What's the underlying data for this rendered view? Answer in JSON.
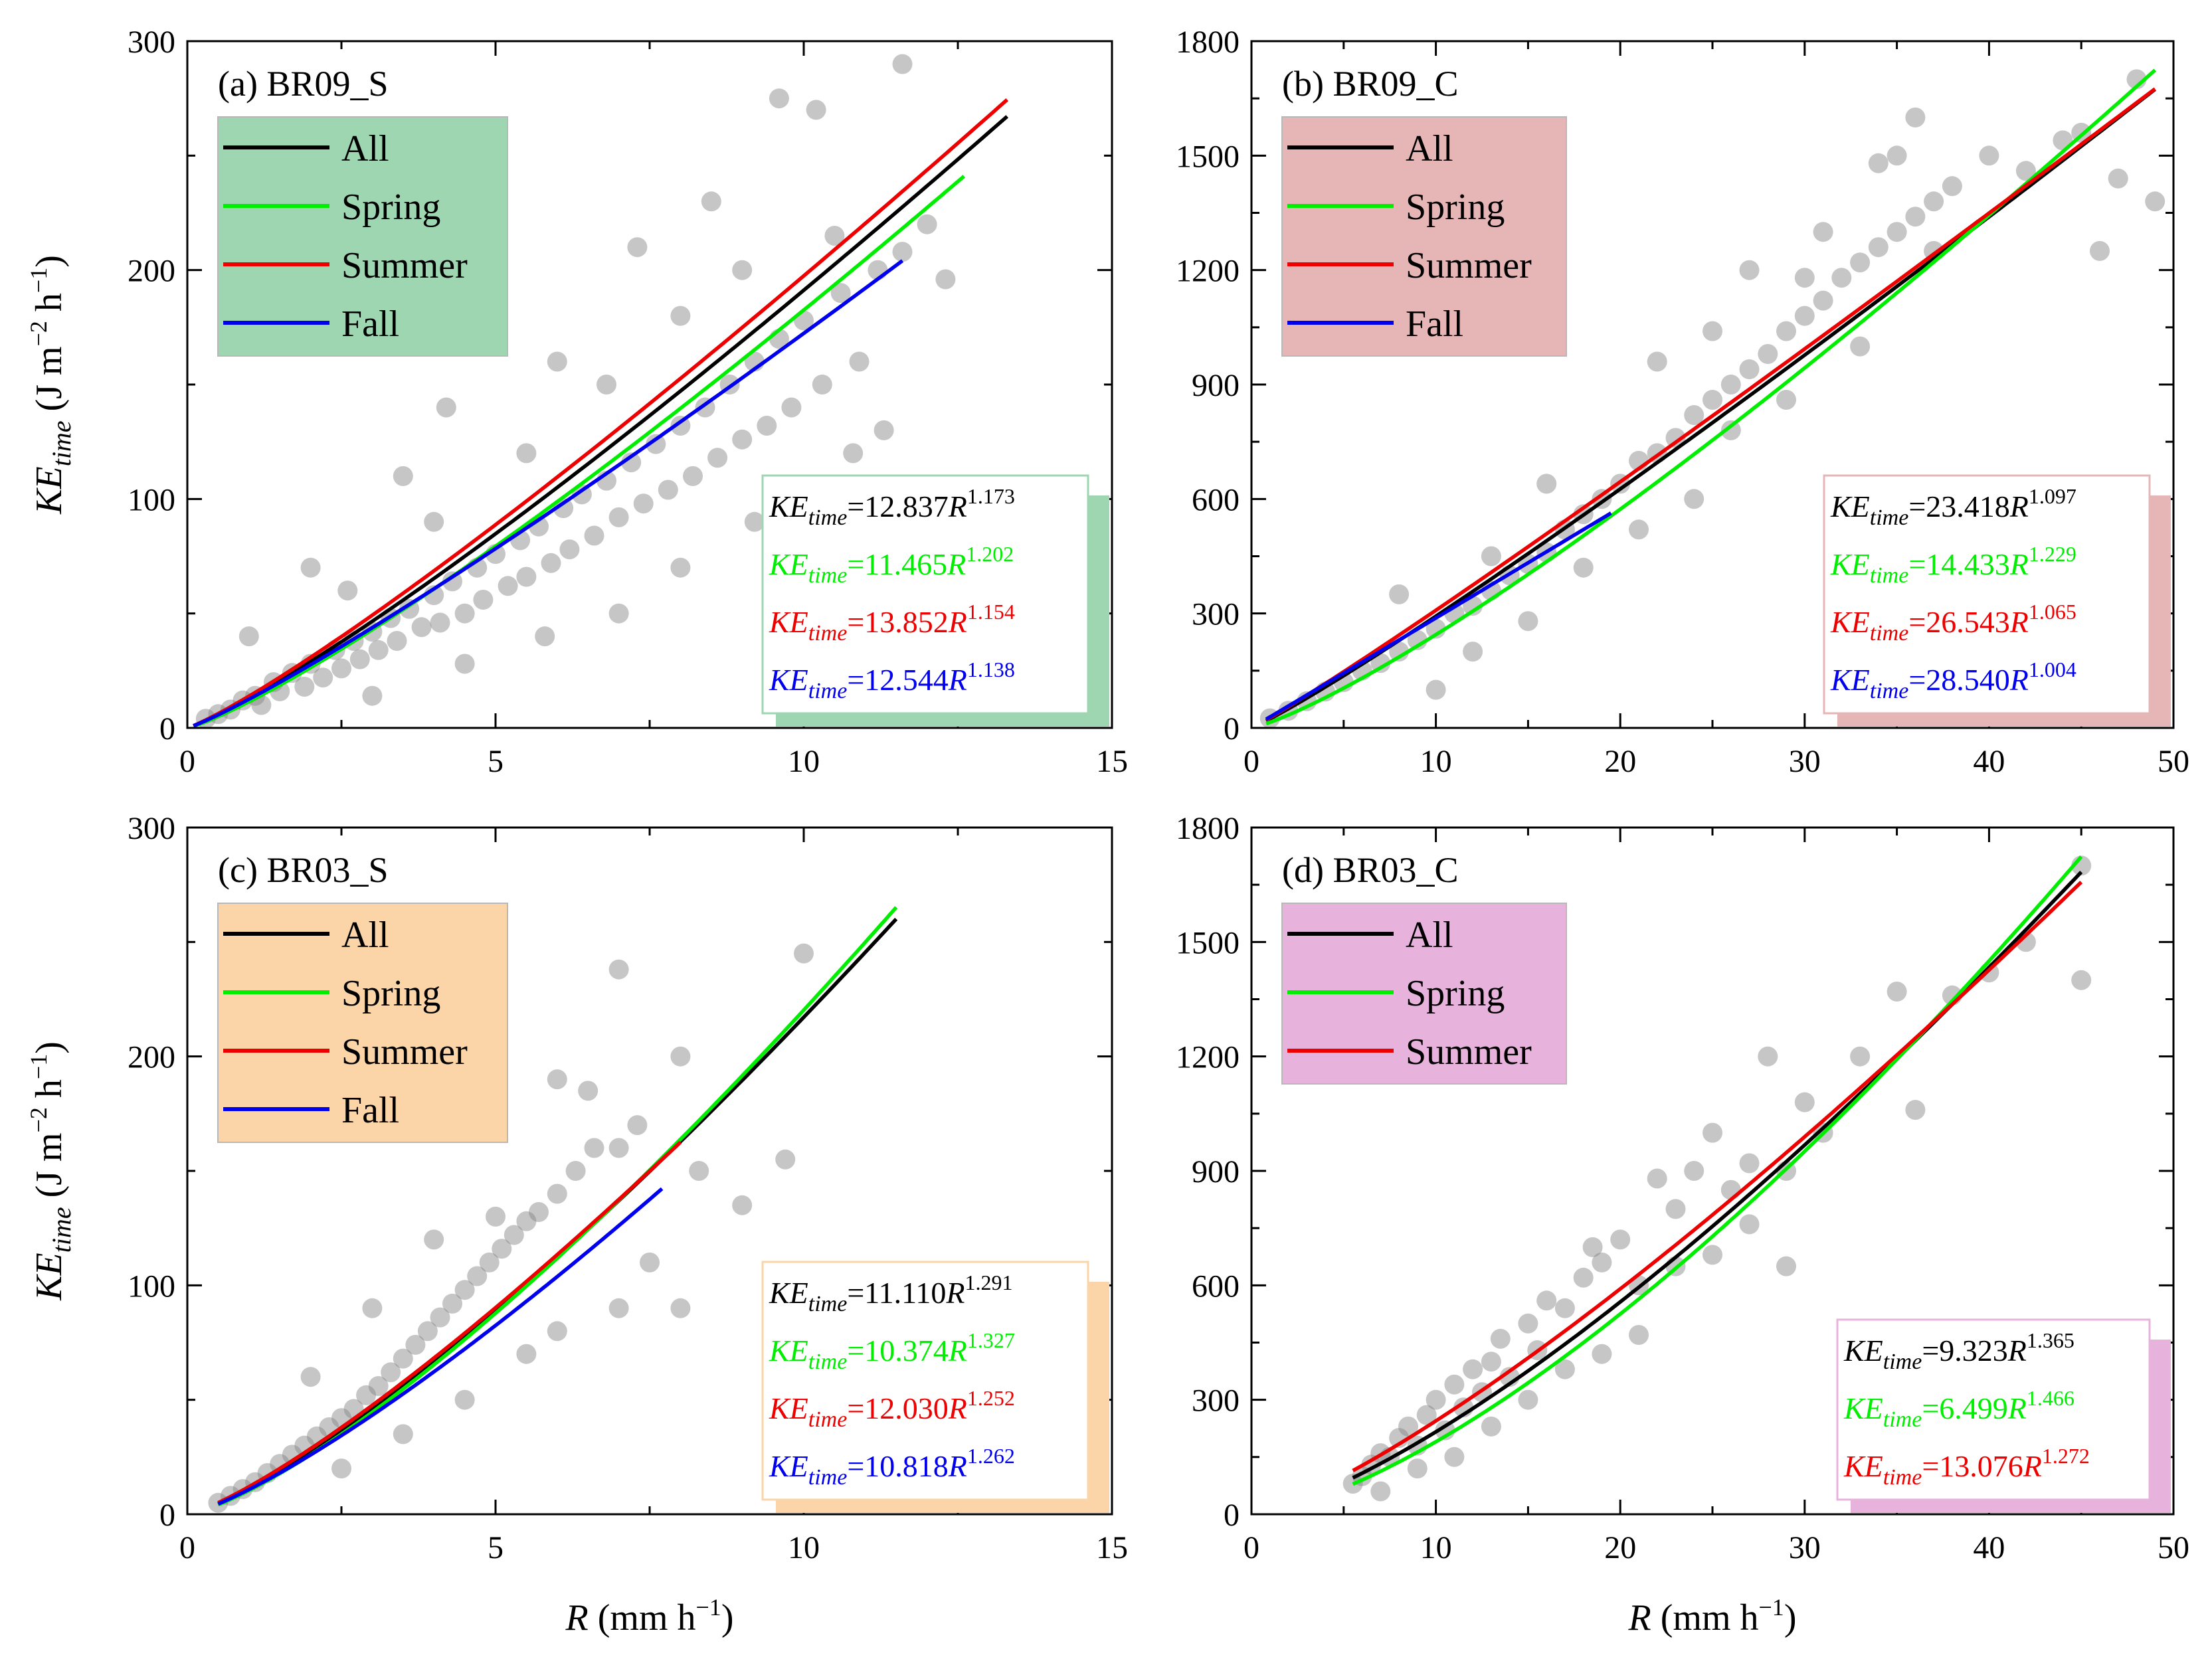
{
  "chart_data": [
    {
      "type": "scatter",
      "title": "(a) BR09_S",
      "xlabel": "R (mm h⁻¹)",
      "ylabel": "KE_time (J m⁻² h⁻¹)",
      "xlim": [
        0,
        15
      ],
      "ylim": [
        0,
        300
      ],
      "xticks": [
        0,
        5,
        10,
        15
      ],
      "yticks": [
        0,
        100,
        200,
        300
      ],
      "legend_color": "#9ed6b2",
      "equation_box_color": "#9ed6b2",
      "scatter_color": "#808080",
      "scatter_points": [
        [
          0.3,
          4
        ],
        [
          0.5,
          6
        ],
        [
          0.7,
          8
        ],
        [
          0.9,
          12
        ],
        [
          1.1,
          14
        ],
        [
          1.2,
          10
        ],
        [
          1.4,
          20
        ],
        [
          1.5,
          16
        ],
        [
          1.7,
          24
        ],
        [
          1.9,
          18
        ],
        [
          2.0,
          28
        ],
        [
          2.2,
          22
        ],
        [
          2.4,
          34
        ],
        [
          2.5,
          26
        ],
        [
          2.7,
          38
        ],
        [
          2.8,
          30
        ],
        [
          3.0,
          42
        ],
        [
          3.1,
          34
        ],
        [
          3.3,
          48
        ],
        [
          3.4,
          38
        ],
        [
          3.6,
          52
        ],
        [
          3.8,
          44
        ],
        [
          4.0,
          58
        ],
        [
          4.1,
          46
        ],
        [
          4.3,
          64
        ],
        [
          4.5,
          50
        ],
        [
          4.7,
          70
        ],
        [
          4.8,
          56
        ],
        [
          5.0,
          76
        ],
        [
          5.2,
          62
        ],
        [
          5.4,
          82
        ],
        [
          5.5,
          66
        ],
        [
          5.7,
          88
        ],
        [
          5.9,
          72
        ],
        [
          6.1,
          96
        ],
        [
          6.2,
          78
        ],
        [
          6.4,
          102
        ],
        [
          6.6,
          84
        ],
        [
          6.8,
          108
        ],
        [
          7.0,
          92
        ],
        [
          7.2,
          116
        ],
        [
          7.4,
          98
        ],
        [
          7.6,
          124
        ],
        [
          7.8,
          104
        ],
        [
          8.0,
          132
        ],
        [
          8.2,
          110
        ],
        [
          8.4,
          140
        ],
        [
          8.6,
          118
        ],
        [
          8.8,
          150
        ],
        [
          9.0,
          126
        ],
        [
          9.2,
          160
        ],
        [
          9.4,
          132
        ],
        [
          9.6,
          170
        ],
        [
          9.8,
          140
        ],
        [
          10.0,
          178
        ],
        [
          10.3,
          150
        ],
        [
          10.6,
          190
        ],
        [
          10.9,
          160
        ],
        [
          11.2,
          200
        ],
        [
          11.6,
          208
        ],
        [
          12.0,
          220
        ],
        [
          12.3,
          196
        ],
        [
          2.0,
          70
        ],
        [
          3.5,
          110
        ],
        [
          4.2,
          140
        ],
        [
          5.0,
          170
        ],
        [
          6.0,
          160
        ],
        [
          7.3,
          210
        ],
        [
          8.5,
          230
        ],
        [
          9.6,
          275
        ],
        [
          10.2,
          270
        ],
        [
          11.6,
          290
        ],
        [
          1.0,
          40
        ],
        [
          2.6,
          60
        ],
        [
          4.0,
          90
        ],
        [
          5.5,
          120
        ],
        [
          6.8,
          150
        ],
        [
          8.0,
          180
        ],
        [
          9.0,
          200
        ],
        [
          10.5,
          215
        ],
        [
          3.0,
          14
        ],
        [
          4.5,
          28
        ],
        [
          5.8,
          40
        ],
        [
          7.0,
          50
        ],
        [
          8.0,
          70
        ],
        [
          9.2,
          90
        ],
        [
          10.8,
          120
        ],
        [
          11.3,
          130
        ]
      ],
      "series": [
        {
          "name": "All",
          "color": "#000000",
          "a": 12.837,
          "b": 1.173,
          "x_range": [
            0.1,
            13.3
          ],
          "equation_label": "12.837",
          "exponent_label": "1.173"
        },
        {
          "name": "Spring",
          "color": "#00ee00",
          "a": 11.465,
          "b": 1.202,
          "x_range": [
            0.1,
            12.6
          ],
          "equation_label": "11.465",
          "exponent_label": "1.202"
        },
        {
          "name": "Summer",
          "color": "#ee0000",
          "a": 13.852,
          "b": 1.154,
          "x_range": [
            0.1,
            13.3
          ],
          "equation_label": "13.852",
          "exponent_label": "1.154"
        },
        {
          "name": "Fall",
          "color": "#0000ee",
          "a": 12.544,
          "b": 1.138,
          "x_range": [
            0.1,
            11.6
          ],
          "equation_label": "12.544",
          "exponent_label": "1.138"
        }
      ]
    },
    {
      "type": "scatter",
      "title": "(b) BR09_C",
      "xlabel": "",
      "ylabel": "",
      "xlim": [
        0,
        50
      ],
      "ylim": [
        0,
        1800
      ],
      "xticks": [
        0,
        10,
        20,
        30,
        40,
        50
      ],
      "yticks": [
        0,
        300,
        600,
        900,
        1200,
        1500,
        1800
      ],
      "legend_color": "#e6b6b6",
      "equation_box_color": "#e6b6b6",
      "scatter_color": "#808080",
      "scatter_points": [
        [
          1,
          25
        ],
        [
          2,
          45
        ],
        [
          3,
          70
        ],
        [
          4,
          95
        ],
        [
          5,
          120
        ],
        [
          6,
          150
        ],
        [
          7,
          170
        ],
        [
          8,
          200
        ],
        [
          9,
          230
        ],
        [
          10,
          260
        ],
        [
          11,
          300
        ],
        [
          12,
          320
        ],
        [
          13,
          360
        ],
        [
          14,
          400
        ],
        [
          15,
          430
        ],
        [
          16,
          460
        ],
        [
          17,
          520
        ],
        [
          18,
          560
        ],
        [
          19,
          600
        ],
        [
          20,
          640
        ],
        [
          21,
          700
        ],
        [
          22,
          720
        ],
        [
          23,
          760
        ],
        [
          24,
          820
        ],
        [
          25,
          860
        ],
        [
          26,
          900
        ],
        [
          27,
          940
        ],
        [
          28,
          980
        ],
        [
          29,
          1040
        ],
        [
          30,
          1080
        ],
        [
          31,
          1120
        ],
        [
          32,
          1180
        ],
        [
          33,
          1220
        ],
        [
          34,
          1260
        ],
        [
          35,
          1300
        ],
        [
          36,
          1340
        ],
        [
          37,
          1380
        ],
        [
          38,
          1420
        ],
        [
          40,
          1500
        ],
        [
          42,
          1460
        ],
        [
          44,
          1540
        ],
        [
          45,
          1560
        ],
        [
          46,
          1250
        ],
        [
          47,
          1440
        ],
        [
          48,
          1700
        ],
        [
          49,
          1380
        ],
        [
          8,
          350
        ],
        [
          10,
          100
        ],
        [
          12,
          200
        ],
        [
          13,
          450
        ],
        [
          15,
          280
        ],
        [
          16,
          640
        ],
        [
          18,
          420
        ],
        [
          21,
          520
        ],
        [
          22,
          960
        ],
        [
          24,
          600
        ],
        [
          26,
          780
        ],
        [
          27,
          1200
        ],
        [
          29,
          860
        ],
        [
          31,
          1300
        ],
        [
          33,
          1000
        ],
        [
          35,
          1500
        ],
        [
          37,
          1250
        ],
        [
          25,
          1040
        ],
        [
          30,
          1180
        ],
        [
          34,
          1480
        ],
        [
          36,
          1600
        ]
      ],
      "series": [
        {
          "name": "All",
          "color": "#000000",
          "a": 23.418,
          "b": 1.097,
          "x_range": [
            0.8,
            49.0
          ],
          "equation_label": "23.418",
          "exponent_label": "1.097"
        },
        {
          "name": "Spring",
          "color": "#00ee00",
          "a": 14.433,
          "b": 1.229,
          "x_range": [
            0.8,
            49.0
          ],
          "equation_label": "14.433",
          "exponent_label": "1.229"
        },
        {
          "name": "Summer",
          "color": "#ee0000",
          "a": 26.543,
          "b": 1.065,
          "x_range": [
            0.8,
            49.0
          ],
          "equation_label": "26.543",
          "exponent_label": "1.065"
        },
        {
          "name": "Fall",
          "color": "#0000ee",
          "a": 28.54,
          "b": 1.004,
          "x_range": [
            0.8,
            19.5
          ],
          "equation_label": "28.540",
          "exponent_label": "1.004"
        }
      ]
    },
    {
      "type": "scatter",
      "title": "(c) BR03_S",
      "xlabel": "R (mm h⁻¹)",
      "ylabel": "KE_time (J m⁻² h⁻¹)",
      "xlim": [
        0,
        15
      ],
      "ylim": [
        0,
        300
      ],
      "xticks": [
        0,
        5,
        10,
        15
      ],
      "yticks": [
        0,
        100,
        200,
        300
      ],
      "legend_color": "#fbd4a8",
      "equation_box_color": "#fbd4a8",
      "scatter_color": "#808080",
      "scatter_points": [
        [
          0.5,
          5
        ],
        [
          0.7,
          8
        ],
        [
          0.9,
          11
        ],
        [
          1.1,
          14
        ],
        [
          1.3,
          18
        ],
        [
          1.5,
          22
        ],
        [
          1.7,
          26
        ],
        [
          1.9,
          30
        ],
        [
          2.1,
          34
        ],
        [
          2.3,
          38
        ],
        [
          2.5,
          42
        ],
        [
          2.7,
          46
        ],
        [
          2.9,
          52
        ],
        [
          3.1,
          56
        ],
        [
          3.3,
          62
        ],
        [
          3.5,
          68
        ],
        [
          3.7,
          74
        ],
        [
          3.9,
          80
        ],
        [
          4.1,
          86
        ],
        [
          4.3,
          92
        ],
        [
          4.5,
          98
        ],
        [
          4.7,
          104
        ],
        [
          4.9,
          110
        ],
        [
          5.1,
          116
        ],
        [
          5.3,
          122
        ],
        [
          5.5,
          128
        ],
        [
          5.7,
          132
        ],
        [
          6.0,
          140
        ],
        [
          6.3,
          150
        ],
        [
          6.6,
          160
        ],
        [
          7.0,
          160
        ],
        [
          7.3,
          170
        ],
        [
          8.0,
          200
        ],
        [
          9.7,
          155
        ],
        [
          10.0,
          245
        ],
        [
          2.0,
          60
        ],
        [
          3.0,
          90
        ],
        [
          4.0,
          120
        ],
        [
          5.0,
          130
        ],
        [
          6.0,
          190
        ],
        [
          6.5,
          185
        ],
        [
          7.0,
          238
        ],
        [
          7.5,
          110
        ],
        [
          8.0,
          90
        ],
        [
          8.3,
          150
        ],
        [
          9.0,
          135
        ],
        [
          2.5,
          20
        ],
        [
          3.5,
          35
        ],
        [
          4.5,
          50
        ],
        [
          5.5,
          70
        ],
        [
          6.0,
          80
        ],
        [
          7.0,
          90
        ]
      ],
      "series": [
        {
          "name": "All",
          "color": "#000000",
          "a": 11.11,
          "b": 1.291,
          "x_range": [
            0.5,
            11.5
          ],
          "equation_label": "11.110",
          "exponent_label": "1.291"
        },
        {
          "name": "Spring",
          "color": "#00ee00",
          "a": 10.374,
          "b": 1.327,
          "x_range": [
            0.5,
            11.5
          ],
          "equation_label": "10.374",
          "exponent_label": "1.327"
        },
        {
          "name": "Summer",
          "color": "#ee0000",
          "a": 12.03,
          "b": 1.252,
          "x_range": [
            0.5,
            8.0
          ],
          "equation_label": "12.030",
          "exponent_label": "1.252"
        },
        {
          "name": "Fall",
          "color": "#0000ee",
          "a": 10.818,
          "b": 1.262,
          "x_range": [
            0.5,
            7.7
          ],
          "equation_label": "10.818",
          "exponent_label": "1.262"
        }
      ]
    },
    {
      "type": "scatter",
      "title": "(d) BR03_C",
      "xlabel": "R (mm h⁻¹)",
      "ylabel": "",
      "xlim": [
        0,
        50
      ],
      "ylim": [
        0,
        1800
      ],
      "xticks": [
        0,
        10,
        20,
        30,
        40,
        50
      ],
      "yticks": [
        0,
        300,
        600,
        900,
        1200,
        1500,
        1800
      ],
      "legend_color": "#e7b2dc",
      "equation_box_color": "#e7b2dc",
      "scatter_color": "#808080",
      "scatter_points": [
        [
          5.5,
          80
        ],
        [
          6,
          100
        ],
        [
          6.5,
          130
        ],
        [
          7,
          160
        ],
        [
          7.5,
          150
        ],
        [
          8,
          200
        ],
        [
          8.5,
          230
        ],
        [
          9,
          180
        ],
        [
          9.5,
          260
        ],
        [
          10,
          300
        ],
        [
          10.5,
          220
        ],
        [
          11,
          340
        ],
        [
          11.5,
          280
        ],
        [
          12,
          380
        ],
        [
          12.5,
          320
        ],
        [
          13,
          400
        ],
        [
          13.5,
          460
        ],
        [
          14,
          360
        ],
        [
          15,
          500
        ],
        [
          15.5,
          430
        ],
        [
          16,
          560
        ],
        [
          17,
          540
        ],
        [
          18,
          620
        ],
        [
          18.5,
          700
        ],
        [
          19,
          660
        ],
        [
          20,
          720
        ],
        [
          21,
          600
        ],
        [
          22,
          880
        ],
        [
          23,
          800
        ],
        [
          24,
          900
        ],
        [
          25,
          1000
        ],
        [
          26,
          850
        ],
        [
          27,
          920
        ],
        [
          28,
          1200
        ],
        [
          29,
          900
        ],
        [
          30,
          1080
        ],
        [
          31,
          1000
        ],
        [
          33,
          1200
        ],
        [
          35,
          1370
        ],
        [
          36,
          1060
        ],
        [
          38,
          1360
        ],
        [
          40,
          1420
        ],
        [
          42,
          1500
        ],
        [
          45,
          1400
        ],
        [
          45,
          1700
        ],
        [
          7,
          60
        ],
        [
          9,
          120
        ],
        [
          11,
          150
        ],
        [
          13,
          230
        ],
        [
          15,
          300
        ],
        [
          17,
          380
        ],
        [
          19,
          420
        ],
        [
          21,
          470
        ],
        [
          23,
          650
        ],
        [
          25,
          680
        ],
        [
          27,
          760
        ],
        [
          29,
          650
        ]
      ],
      "series": [
        {
          "name": "All",
          "color": "#000000",
          "a": 9.323,
          "b": 1.365,
          "x_range": [
            5.5,
            45.0
          ],
          "equation_label": "9.323",
          "exponent_label": "1.365"
        },
        {
          "name": "Spring",
          "color": "#00ee00",
          "a": 6.499,
          "b": 1.466,
          "x_range": [
            5.5,
            45.0
          ],
          "equation_label": "6.499",
          "exponent_label": "1.466"
        },
        {
          "name": "Summer",
          "color": "#ee0000",
          "a": 13.076,
          "b": 1.272,
          "x_range": [
            5.5,
            45.0
          ],
          "equation_label": "13.076",
          "exponent_label": "1.272"
        }
      ]
    }
  ],
  "labels": {
    "ke_symbol": "KE",
    "ke_subscript": "time",
    "r_symbol": "R",
    "equals": "=",
    "y_unit_open": "(J m",
    "y_unit_exp1": "−2",
    "y_unit_mid": " h",
    "y_unit_exp2": "−1",
    "y_unit_close": ")",
    "x_unit_open": "(mm h",
    "x_unit_exp": "−1",
    "x_unit_close": ")"
  }
}
